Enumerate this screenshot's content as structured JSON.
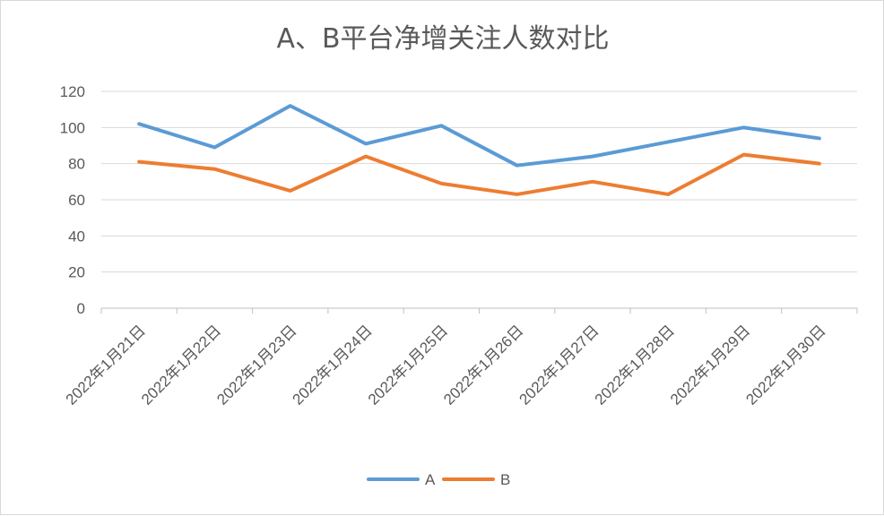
{
  "chart_data": {
    "type": "line",
    "title": "A、B平台净增关注人数对比",
    "categories": [
      "2022年1月21日",
      "2022年1月22日",
      "2022年1月23日",
      "2022年1月24日",
      "2022年1月25日",
      "2022年1月26日",
      "2022年1月27日",
      "2022年1月28日",
      "2022年1月29日",
      "2022年1月30日"
    ],
    "series": [
      {
        "name": "A",
        "color": "#5b9bd5",
        "values": [
          102,
          89,
          112,
          91,
          101,
          79,
          84,
          92,
          100,
          94
        ]
      },
      {
        "name": "B",
        "color": "#ed7d31",
        "values": [
          81,
          77,
          65,
          84,
          69,
          63,
          70,
          63,
          85,
          80
        ]
      }
    ],
    "y_ticks": [
      "0",
      "20",
      "40",
      "60",
      "80",
      "100",
      "120"
    ],
    "ylim": [
      0,
      120
    ],
    "grid": true,
    "legend_position": "bottom"
  }
}
